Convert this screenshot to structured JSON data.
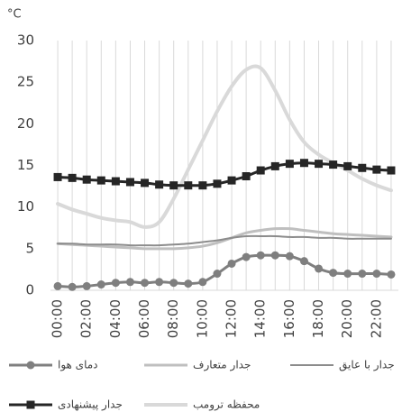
{
  "chart_data": {
    "type": "line",
    "y_label": "°C",
    "categories": [
      "00:00",
      null,
      "02:00",
      null,
      "04:00",
      null,
      "06:00",
      null,
      "08:00",
      null,
      "10:00",
      null,
      "12:00",
      null,
      "14:00",
      null,
      "16:00",
      null,
      "18:00",
      null,
      "20:00",
      null,
      "22:00",
      null
    ],
    "ylim": [
      0,
      30
    ],
    "yticks": [
      0,
      5,
      10,
      15,
      20,
      25,
      30
    ],
    "grid": "x",
    "series": [
      {
        "name": "دمای هوا",
        "color": "#7f7f7f",
        "marker": "circle",
        "width": 3,
        "values": [
          0.5,
          0.4,
          0.5,
          0.7,
          0.9,
          1.0,
          0.9,
          1.0,
          0.9,
          0.8,
          1.0,
          2.0,
          3.2,
          4.0,
          4.2,
          4.2,
          4.1,
          3.5,
          2.6,
          2.1,
          2.0,
          2.0,
          2.0,
          1.9
        ]
      },
      {
        "name": "جدار متعارف",
        "color": "#bfbfbf",
        "marker": "none",
        "width": 3,
        "values": [
          5.6,
          5.5,
          5.4,
          5.3,
          5.2,
          5.1,
          5.0,
          5.0,
          5.0,
          5.1,
          5.3,
          5.7,
          6.3,
          6.9,
          7.2,
          7.4,
          7.4,
          7.2,
          7.0,
          6.8,
          6.7,
          6.6,
          6.5,
          6.4
        ]
      },
      {
        "name": "جدار با عایق",
        "color": "#8c8c8c",
        "marker": "none",
        "width": 2,
        "values": [
          5.6,
          5.6,
          5.5,
          5.5,
          5.5,
          5.4,
          5.4,
          5.4,
          5.5,
          5.6,
          5.8,
          6.0,
          6.3,
          6.5,
          6.5,
          6.5,
          6.4,
          6.4,
          6.3,
          6.3,
          6.2,
          6.2,
          6.2,
          6.2
        ]
      },
      {
        "name": "جدار پیشنهادی",
        "color": "#262626",
        "marker": "square",
        "width": 3,
        "values": [
          13.6,
          13.5,
          13.3,
          13.2,
          13.1,
          13.0,
          12.9,
          12.7,
          12.6,
          12.6,
          12.6,
          12.8,
          13.2,
          13.7,
          14.4,
          14.9,
          15.2,
          15.3,
          15.2,
          15.1,
          14.9,
          14.7,
          14.5,
          14.4
        ]
      },
      {
        "name": "محفظه ترومب",
        "color": "#d9d9d9",
        "marker": "none",
        "width": 4,
        "values": [
          10.4,
          9.7,
          9.2,
          8.7,
          8.4,
          8.2,
          7.6,
          8.2,
          11.0,
          14.5,
          18.0,
          21.5,
          24.5,
          26.5,
          26.7,
          24.0,
          20.5,
          17.8,
          16.3,
          15.3,
          14.4,
          13.4,
          12.6,
          12.0
        ]
      }
    ]
  }
}
